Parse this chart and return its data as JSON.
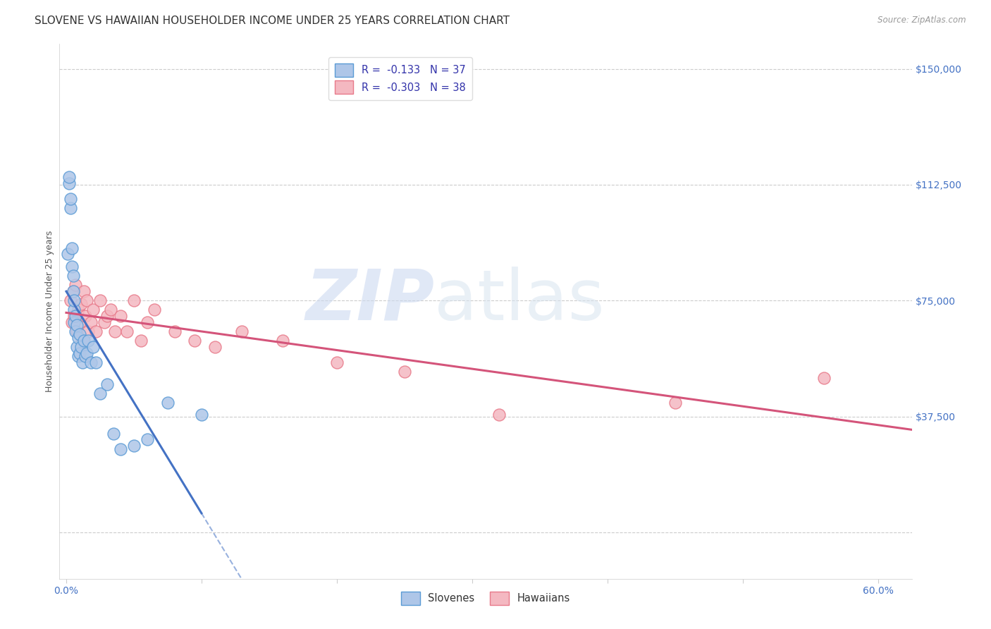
{
  "title": "SLOVENE VS HAWAIIAN HOUSEHOLDER INCOME UNDER 25 YEARS CORRELATION CHART",
  "source": "Source: ZipAtlas.com",
  "ylabel": "Householder Income Under 25 years",
  "xlabel_ticks": [
    "0.0%",
    "",
    "",
    "",
    "",
    "",
    "60.0%"
  ],
  "xlabel_vals": [
    0.0,
    0.1,
    0.2,
    0.3,
    0.4,
    0.5,
    0.6
  ],
  "ytick_vals": [
    0,
    37500,
    75000,
    112500,
    150000
  ],
  "ytick_labels": [
    "",
    "$37,500",
    "$75,000",
    "$112,500",
    "$150,000"
  ],
  "xlim": [
    -0.005,
    0.625
  ],
  "ylim": [
    -15000,
    158000
  ],
  "legend_entries": [
    {
      "label": "R =  -0.133   N = 37",
      "color_fill": "#aec6e8",
      "color_edge": "#5b9bd5"
    },
    {
      "label": "R =  -0.303   N = 38",
      "color_fill": "#f4b8c1",
      "color_edge": "#e87a8a"
    }
  ],
  "slovene_x": [
    0.001,
    0.002,
    0.002,
    0.003,
    0.003,
    0.004,
    0.004,
    0.005,
    0.005,
    0.006,
    0.006,
    0.006,
    0.007,
    0.007,
    0.008,
    0.008,
    0.009,
    0.009,
    0.01,
    0.01,
    0.011,
    0.012,
    0.013,
    0.014,
    0.015,
    0.016,
    0.018,
    0.02,
    0.022,
    0.025,
    0.03,
    0.035,
    0.04,
    0.05,
    0.06,
    0.075,
    0.1
  ],
  "slovene_y": [
    90000,
    113000,
    115000,
    105000,
    108000,
    86000,
    92000,
    78000,
    83000,
    72000,
    68000,
    75000,
    65000,
    70000,
    60000,
    67000,
    57000,
    63000,
    58000,
    64000,
    60000,
    55000,
    62000,
    57000,
    58000,
    62000,
    55000,
    60000,
    55000,
    45000,
    48000,
    32000,
    27000,
    28000,
    30000,
    42000,
    38000
  ],
  "hawaiian_x": [
    0.003,
    0.004,
    0.005,
    0.006,
    0.007,
    0.008,
    0.009,
    0.01,
    0.011,
    0.012,
    0.013,
    0.014,
    0.015,
    0.016,
    0.018,
    0.02,
    0.022,
    0.025,
    0.028,
    0.03,
    0.033,
    0.036,
    0.04,
    0.045,
    0.05,
    0.055,
    0.06,
    0.065,
    0.08,
    0.095,
    0.11,
    0.13,
    0.16,
    0.2,
    0.25,
    0.32,
    0.45,
    0.56
  ],
  "hawaiian_y": [
    75000,
    68000,
    78000,
    70000,
    80000,
    65000,
    72000,
    68000,
    74000,
    62000,
    78000,
    70000,
    75000,
    65000,
    68000,
    72000,
    65000,
    75000,
    68000,
    70000,
    72000,
    65000,
    70000,
    65000,
    75000,
    62000,
    68000,
    72000,
    65000,
    62000,
    60000,
    65000,
    62000,
    55000,
    52000,
    38000,
    42000,
    50000
  ],
  "slovene_color_fill": "#aec6e8",
  "slovene_color_edge": "#5b9bd5",
  "hawaiian_color_fill": "#f4b8c1",
  "hawaiian_color_edge": "#e87a8a",
  "trend_slovene_color": "#4472c4",
  "trend_hawaiian_color": "#d4547a",
  "background_color": "#ffffff",
  "grid_color": "#cccccc",
  "solid_cutoff_slovene": 0.1,
  "title_fontsize": 11,
  "axis_label_fontsize": 9,
  "tick_fontsize": 10,
  "ytick_color": "#4472c4",
  "xtick_color": "#4472c4"
}
